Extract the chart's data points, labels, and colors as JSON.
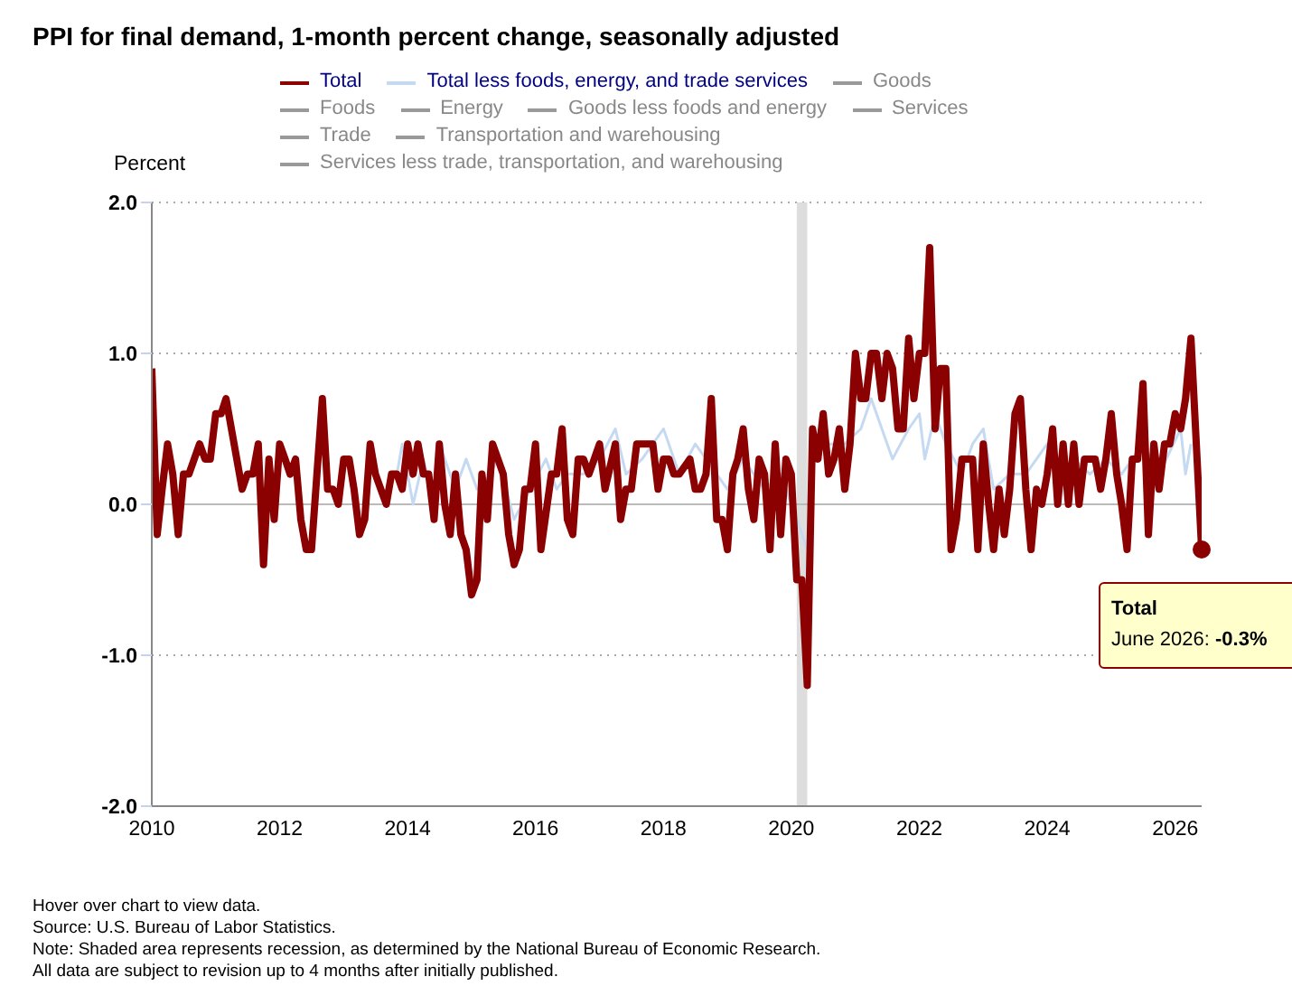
{
  "chart_data": {
    "type": "line",
    "title": "PPI for final demand, 1-month percent change, seasonally adjusted",
    "ylabel": "Percent",
    "xlim": [
      "2010-01",
      "2026-06"
    ],
    "xticks": [
      "2010",
      "2012",
      "2014",
      "2016",
      "2018",
      "2020",
      "2022",
      "2024",
      "2026"
    ],
    "ylim": [
      -2,
      2
    ],
    "yticks": [
      {
        "value": -2,
        "label": "-2.0"
      },
      {
        "value": -1,
        "label": "-1.0"
      },
      {
        "value": 0,
        "label": "0.0"
      },
      {
        "value": 1,
        "label": "1.0"
      },
      {
        "value": 2,
        "label": "2.0"
      }
    ],
    "grid": "y",
    "legend": "top",
    "ref_lines": [
      {
        "axis": "y",
        "value": 0,
        "color": "#bbbbbb"
      }
    ],
    "bands": [
      {
        "axis": "x",
        "from": "2020-02",
        "to": "2020-04",
        "color": "#dddddd"
      }
    ],
    "series": [
      {
        "name": "Total",
        "color": "#8b0000",
        "x": [
          "2010-01",
          "2010-02",
          "2010-03",
          "2010-04",
          "2010-05",
          "2010-06",
          "2010-07",
          "2010-08",
          "2010-10",
          "2010-11",
          "2010-12",
          "2011-01",
          "2011-02",
          "2011-03",
          "2011-06",
          "2011-07",
          "2011-08",
          "2011-09",
          "2011-10",
          "2011-11",
          "2011-12",
          "2012-01",
          "2012-02",
          "2012-03",
          "2012-04",
          "2012-05",
          "2012-06",
          "2012-07",
          "2012-09",
          "2012-10",
          "2012-11",
          "2012-12",
          "2013-01",
          "2013-02",
          "2013-03",
          "2013-04",
          "2013-05",
          "2013-06",
          "2013-07",
          "2013-08",
          "2013-09",
          "2013-10",
          "2013-11",
          "2013-12",
          "2014-01",
          "2014-02",
          "2014-03",
          "2014-04",
          "2014-05",
          "2014-06",
          "2014-07",
          "2014-08",
          "2014-09",
          "2014-10",
          "2014-11",
          "2014-12",
          "2015-01",
          "2015-02",
          "2015-03",
          "2015-04",
          "2015-05",
          "2015-07",
          "2015-08",
          "2015-09",
          "2015-10",
          "2015-11",
          "2015-12",
          "2016-01",
          "2016-02",
          "2016-04",
          "2016-05",
          "2016-06",
          "2016-07",
          "2016-08",
          "2016-09",
          "2016-10",
          "2016-11",
          "2017-01",
          "2017-02",
          "2017-04",
          "2017-05",
          "2017-06",
          "2017-07",
          "2017-08",
          "2017-11",
          "2017-12",
          "2018-01",
          "2018-02",
          "2018-03",
          "2018-04",
          "2018-06",
          "2018-07",
          "2018-08",
          "2018-09",
          "2018-10",
          "2018-11",
          "2018-12",
          "2019-01",
          "2019-02",
          "2019-03",
          "2019-04",
          "2019-05",
          "2019-06",
          "2019-07",
          "2019-08",
          "2019-09",
          "2019-10",
          "2019-11",
          "2019-12",
          "2020-01",
          "2020-02",
          "2020-03",
          "2020-04",
          "2020-05",
          "2020-06",
          "2020-07",
          "2020-08",
          "2020-09",
          "2020-10",
          "2020-11",
          "2020-12",
          "2021-01",
          "2021-02",
          "2021-03",
          "2021-04",
          "2021-05",
          "2021-06",
          "2021-07",
          "2021-08",
          "2021-09",
          "2021-10",
          "2021-11",
          "2021-12",
          "2022-01",
          "2022-02",
          "2022-03",
          "2022-04",
          "2022-05",
          "2022-06",
          "2022-07",
          "2022-08",
          "2022-09",
          "2022-10",
          "2022-11",
          "2022-12",
          "2023-01",
          "2023-02",
          "2023-03",
          "2023-04",
          "2023-05",
          "2023-06",
          "2023-07",
          "2023-08",
          "2023-09",
          "2023-10",
          "2023-11",
          "2023-12",
          "2024-01",
          "2024-02",
          "2024-03",
          "2024-04",
          "2024-05",
          "2024-06",
          "2024-07",
          "2024-08",
          "2024-10",
          "2024-11",
          "2024-12",
          "2025-01",
          "2025-02",
          "2025-03",
          "2025-04",
          "2025-05",
          "2025-06",
          "2025-07",
          "2025-08",
          "2025-09",
          "2025-10",
          "2025-11",
          "2025-12",
          "2026-01",
          "2026-02",
          "2026-03",
          "2026-04",
          "2026-06"
        ],
        "values": [
          0.9,
          -0.2,
          0.1,
          0.4,
          0.2,
          -0.2,
          0.2,
          0.2,
          0.4,
          0.3,
          0.3,
          0.6,
          0.6,
          0.7,
          0.1,
          0.2,
          0.2,
          0.4,
          -0.4,
          0.3,
          -0.1,
          0.4,
          0.3,
          0.2,
          0.3,
          -0.1,
          -0.3,
          -0.3,
          0.7,
          0.1,
          0.1,
          0.0,
          0.3,
          0.3,
          0.1,
          -0.2,
          -0.1,
          0.4,
          0.2,
          0.1,
          0.0,
          0.2,
          0.2,
          0.1,
          0.4,
          0.2,
          0.4,
          0.2,
          0.2,
          -0.1,
          0.4,
          0.0,
          -0.2,
          0.2,
          -0.2,
          -0.3,
          -0.6,
          -0.5,
          0.2,
          -0.1,
          0.4,
          0.2,
          -0.2,
          -0.4,
          -0.3,
          0.1,
          0.1,
          0.4,
          -0.3,
          0.2,
          0.2,
          0.5,
          -0.1,
          -0.2,
          0.3,
          0.3,
          0.2,
          0.4,
          0.1,
          0.4,
          -0.1,
          0.1,
          0.1,
          0.4,
          0.4,
          0.1,
          0.3,
          0.3,
          0.2,
          0.2,
          0.3,
          0.1,
          0.1,
          0.2,
          0.7,
          -0.1,
          -0.1,
          -0.3,
          0.2,
          0.3,
          0.5,
          0.1,
          -0.1,
          0.3,
          0.2,
          -0.3,
          0.4,
          -0.2,
          0.3,
          0.2,
          -0.5,
          -0.5,
          -1.2,
          0.5,
          0.3,
          0.6,
          0.2,
          0.3,
          0.5,
          0.1,
          0.4,
          1.0,
          0.7,
          0.7,
          1.0,
          1.0,
          0.7,
          1.0,
          0.9,
          0.5,
          0.5,
          1.1,
          0.7,
          1.0,
          1.0,
          1.7,
          0.5,
          0.9,
          0.9,
          -0.3,
          -0.1,
          0.3,
          0.3,
          0.3,
          -0.3,
          0.4,
          0.0,
          -0.3,
          0.1,
          -0.2,
          0.1,
          0.6,
          0.7,
          0.1,
          -0.3,
          0.1,
          0.0,
          0.2,
          0.5,
          0.0,
          0.4,
          0.0,
          0.4,
          0.0,
          0.3,
          0.3,
          0.1,
          0.3,
          0.6,
          0.2,
          0.0,
          -0.3,
          0.3,
          0.3,
          0.8,
          -0.2,
          0.4,
          0.1,
          0.4,
          0.4,
          0.6,
          0.5,
          0.7,
          1.1,
          -0.3
        ]
      },
      {
        "name": "Total less foods, energy, and trade services",
        "color": "#c5daf2",
        "x": [
          "2013-11",
          "2013-12",
          "2014-02",
          "2014-04",
          "2014-06",
          "2014-07",
          "2014-10",
          "2014-12",
          "2015-02",
          "2015-03",
          "2015-06",
          "2015-09",
          "2015-12",
          "2016-03",
          "2016-05",
          "2016-07",
          "2016-10",
          "2017-01",
          "2017-04",
          "2017-06",
          "2017-09",
          "2018-01",
          "2018-04",
          "2018-07",
          "2018-09",
          "2019-01",
          "2019-04",
          "2019-08",
          "2019-11",
          "2020-02",
          "2020-04",
          "2020-05",
          "2020-08",
          "2020-11",
          "2021-02",
          "2021-04",
          "2021-06",
          "2021-08",
          "2021-11",
          "2022-01",
          "2022-02",
          "2022-04",
          "2022-06",
          "2022-09",
          "2022-11",
          "2023-01",
          "2023-03",
          "2023-06",
          "2023-09",
          "2024-01",
          "2024-03",
          "2024-06",
          "2024-09",
          "2024-12",
          "2025-03",
          "2025-07",
          "2025-10",
          "2026-02",
          "2026-03",
          "2026-04"
        ],
        "values": [
          0.2,
          0.4,
          0.0,
          0.3,
          0.0,
          0.4,
          0.1,
          0.3,
          0.1,
          0.1,
          0.3,
          -0.1,
          0.1,
          0.3,
          0.1,
          0.2,
          0.2,
          0.3,
          0.5,
          0.2,
          0.3,
          0.5,
          0.2,
          0.4,
          0.3,
          0.1,
          0.3,
          0.1,
          0.2,
          -0.1,
          -0.3,
          0.3,
          0.4,
          0.4,
          0.5,
          0.7,
          0.5,
          0.3,
          0.5,
          0.6,
          0.3,
          0.6,
          0.4,
          0.2,
          0.4,
          0.5,
          0.1,
          0.2,
          0.2,
          0.4,
          0.2,
          0.3,
          0.2,
          0.3,
          0.2,
          0.4,
          0.2,
          0.5,
          0.2,
          0.4
        ]
      },
      {
        "name": "Goods",
        "color": "#999999"
      },
      {
        "name": "Foods",
        "color": "#999999"
      },
      {
        "name": "Energy",
        "color": "#999999"
      },
      {
        "name": "Goods less foods and energy",
        "color": "#999999"
      },
      {
        "name": "Services",
        "color": "#999999"
      },
      {
        "name": "Trade",
        "color": "#999999"
      },
      {
        "name": "Transportation and warehousing",
        "color": "#999999"
      },
      {
        "name": "Services less trade, transportation, and warehousing",
        "color": "#999999"
      }
    ],
    "annotations": [
      {
        "text": "Total\nJune 2026: -0.3%",
        "x": "2026-06",
        "y": -0.3
      },
      "Hover over chart to view data.",
      "Source: U.S. Bureau of Labor Statistics.",
      "Note: Shaded area represents recession, as determined by the National Bureau of Economic Research.",
      "All data are subject to revision up to 4 months after initially published."
    ]
  }
}
